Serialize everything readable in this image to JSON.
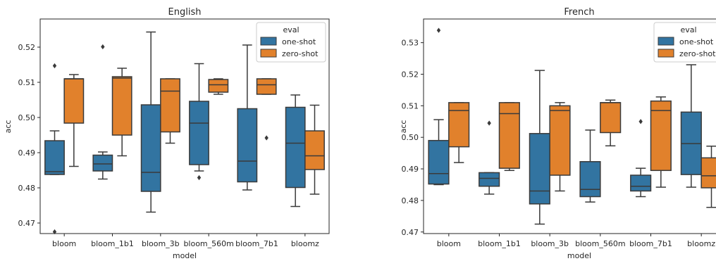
{
  "chart_data": [
    {
      "type": "box",
      "title": "English",
      "xlabel": "model",
      "ylabel": "acc",
      "ylim": [
        0.467,
        0.528
      ],
      "yticks": [
        0.47,
        0.48,
        0.49,
        0.5,
        0.51,
        0.52
      ],
      "yticklabels": [
        "0.47",
        "0.48",
        "0.49",
        "0.50",
        "0.51",
        "0.52"
      ],
      "categories": [
        "bloom",
        "bloom_1b1",
        "bloom_3b",
        "bloom_560m",
        "bloom_7b1",
        "bloomz"
      ],
      "legend": {
        "title": "eval",
        "placement": "top-right",
        "entries": [
          "one-shot",
          "zero-shot"
        ]
      },
      "series": [
        {
          "name": "one-shot",
          "color": "#3274a1",
          "boxes": [
            {
              "whislo": 0.4838,
              "q1": 0.4838,
              "med": 0.4846,
              "q3": 0.4934,
              "whishi": 0.4962,
              "fliers": [
                0.5147,
                0.4675
              ]
            },
            {
              "whislo": 0.4825,
              "q1": 0.4848,
              "med": 0.4868,
              "q3": 0.4893,
              "whishi": 0.4902,
              "fliers": [
                0.5201
              ]
            },
            {
              "whislo": 0.4731,
              "q1": 0.479,
              "med": 0.4844,
              "q3": 0.5036,
              "whishi": 0.5243,
              "fliers": []
            },
            {
              "whislo": 0.4848,
              "q1": 0.4866,
              "med": 0.4984,
              "q3": 0.5046,
              "whishi": 0.5153,
              "fliers": [
                0.4829
              ]
            },
            {
              "whislo": 0.4794,
              "q1": 0.4817,
              "med": 0.4876,
              "q3": 0.5025,
              "whishi": 0.5206,
              "fliers": []
            },
            {
              "whislo": 0.4747,
              "q1": 0.4801,
              "med": 0.4927,
              "q3": 0.5029,
              "whishi": 0.5064,
              "fliers": []
            }
          ]
        },
        {
          "name": "zero-shot",
          "color": "#e1812c",
          "boxes": [
            {
              "whislo": 0.4861,
              "q1": 0.4984,
              "med": 0.511,
              "q3": 0.511,
              "whishi": 0.5122,
              "fliers": []
            },
            {
              "whislo": 0.4891,
              "q1": 0.495,
              "med": 0.5112,
              "q3": 0.5116,
              "whishi": 0.514,
              "fliers": []
            },
            {
              "whislo": 0.4927,
              "q1": 0.4959,
              "med": 0.5075,
              "q3": 0.511,
              "whishi": 0.511,
              "fliers": []
            },
            {
              "whislo": 0.5066,
              "q1": 0.5072,
              "med": 0.5093,
              "q3": 0.5108,
              "whishi": 0.511,
              "fliers": []
            },
            {
              "whislo": 0.5066,
              "q1": 0.5066,
              "med": 0.5093,
              "q3": 0.511,
              "whishi": 0.511,
              "fliers": [
                0.4942
              ]
            },
            {
              "whislo": 0.4782,
              "q1": 0.4852,
              "med": 0.4891,
              "q3": 0.4962,
              "whishi": 0.5035,
              "fliers": []
            }
          ]
        }
      ]
    },
    {
      "type": "box",
      "title": "French",
      "xlabel": "model",
      "ylabel": "acc",
      "ylim": [
        0.4695,
        0.5375
      ],
      "yticks": [
        0.47,
        0.48,
        0.49,
        0.5,
        0.51,
        0.52,
        0.53
      ],
      "yticklabels": [
        "0.47",
        "0.48",
        "0.49",
        "0.50",
        "0.51",
        "0.52",
        "0.53"
      ],
      "categories": [
        "bloom",
        "bloom_1b1",
        "bloom_3b",
        "bloom_560m",
        "bloom_7b1",
        "bloomz"
      ],
      "legend": {
        "title": "eval",
        "placement": "top-right",
        "entries": [
          "one-shot",
          "zero-shot"
        ]
      },
      "series": [
        {
          "name": "one-shot",
          "color": "#3274a1",
          "boxes": [
            {
              "whislo": 0.485,
              "q1": 0.4852,
              "med": 0.4885,
              "q3": 0.499,
              "whishi": 0.5056,
              "fliers": [
                0.5339
              ]
            },
            {
              "whislo": 0.482,
              "q1": 0.4845,
              "med": 0.487,
              "q3": 0.4888,
              "whishi": 0.4888,
              "fliers": [
                0.5045
              ]
            },
            {
              "whislo": 0.4725,
              "q1": 0.4789,
              "med": 0.483,
              "q3": 0.5012,
              "whishi": 0.5212,
              "fliers": []
            },
            {
              "whislo": 0.4795,
              "q1": 0.4812,
              "med": 0.4835,
              "q3": 0.4923,
              "whishi": 0.5023,
              "fliers": []
            },
            {
              "whislo": 0.4812,
              "q1": 0.483,
              "med": 0.4845,
              "q3": 0.488,
              "whishi": 0.4902,
              "fliers": [
                0.505
              ]
            },
            {
              "whislo": 0.4842,
              "q1": 0.4882,
              "med": 0.498,
              "q3": 0.508,
              "whishi": 0.523,
              "fliers": []
            }
          ]
        },
        {
          "name": "zero-shot",
          "color": "#e1812c",
          "boxes": [
            {
              "whislo": 0.492,
              "q1": 0.497,
              "med": 0.5085,
              "q3": 0.511,
              "whishi": 0.511,
              "fliers": []
            },
            {
              "whislo": 0.4895,
              "q1": 0.4902,
              "med": 0.5075,
              "q3": 0.511,
              "whishi": 0.511,
              "fliers": []
            },
            {
              "whislo": 0.483,
              "q1": 0.488,
              "med": 0.5085,
              "q3": 0.51,
              "whishi": 0.511,
              "fliers": []
            },
            {
              "whislo": 0.4973,
              "q1": 0.5015,
              "med": 0.511,
              "q3": 0.511,
              "whishi": 0.5118,
              "fliers": []
            },
            {
              "whislo": 0.4842,
              "q1": 0.4895,
              "med": 0.5085,
              "q3": 0.5115,
              "whishi": 0.5128,
              "fliers": []
            },
            {
              "whislo": 0.4778,
              "q1": 0.484,
              "med": 0.4878,
              "q3": 0.4935,
              "whishi": 0.4972,
              "fliers": []
            }
          ]
        }
      ]
    }
  ]
}
